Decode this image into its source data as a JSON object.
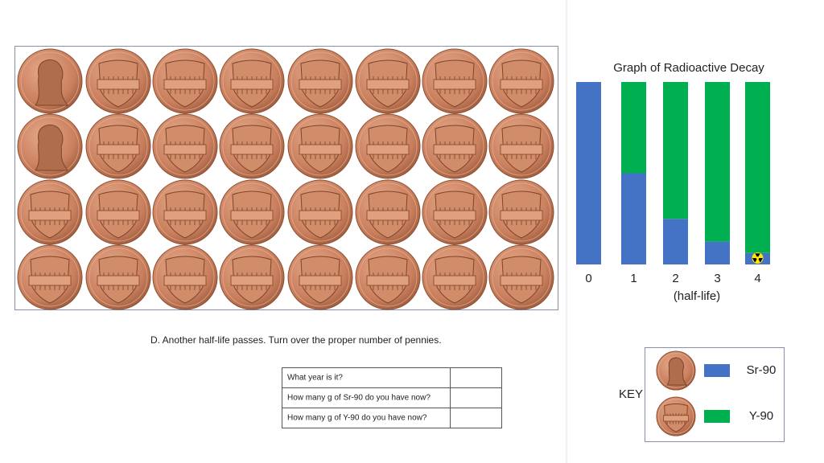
{
  "chart_data": {
    "type": "bar",
    "title": "Graph of Radioactive Decay",
    "categories": [
      "0",
      "1",
      "2",
      "3",
      "4"
    ],
    "x_label": "(half-life)",
    "series": [
      {
        "name": "Sr-90",
        "color": "#4472c4",
        "values": [
          32,
          16,
          8,
          4,
          2
        ]
      },
      {
        "name": "Y-90",
        "color": "#00b050",
        "values": [
          0,
          16,
          24,
          28,
          30
        ]
      }
    ],
    "ylim": [
      0,
      32
    ]
  },
  "instruction": "D.  Another half-life passes.  Turn over the proper number of pennies.",
  "table": {
    "rows": [
      "What year is it?",
      "How many g of Sr-90 do you have now?",
      "How many g of Y-90 do you have now?"
    ]
  },
  "key": {
    "title": "KEY"
  }
}
